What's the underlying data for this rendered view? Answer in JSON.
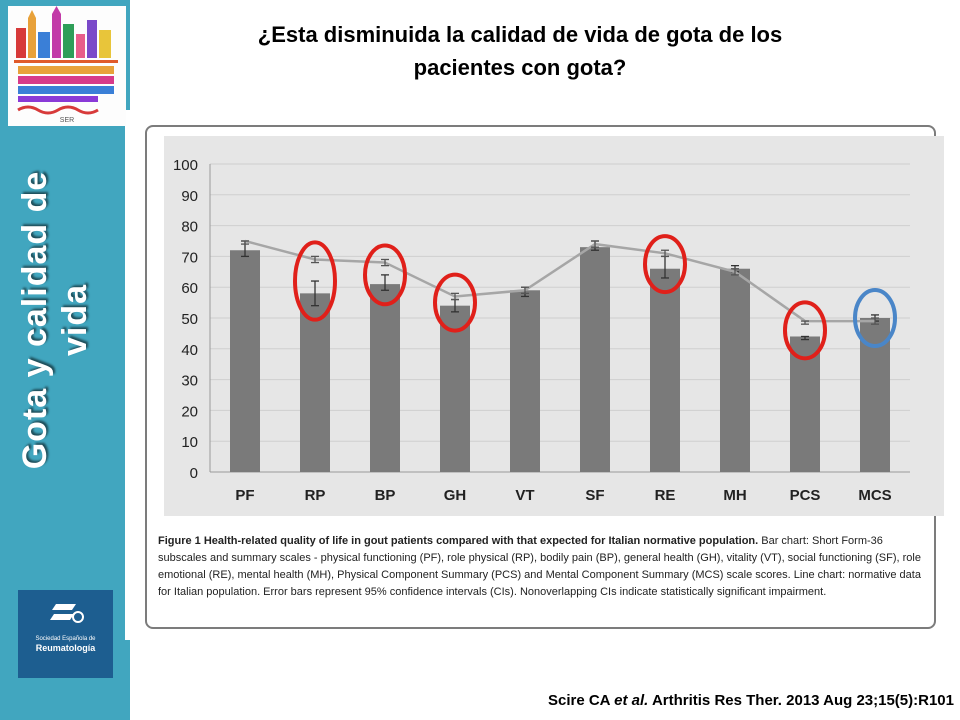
{
  "slide": {
    "title_line1": "¿Esta disminuida la calidad de vida de gota de los",
    "title_line2": "pacientes con gota?",
    "side_title_line1": "Gota  y calidad de",
    "side_title_line2": "vida",
    "logo_text": "SER",
    "ser_logo_small": "Sociedad Española de",
    "ser_logo_big": "Reumatología"
  },
  "colors": {
    "sidebar": "#41a6bf",
    "bar": "#7a7a7a",
    "line": "#a6a6a6",
    "plot_background": "#e6e6e6",
    "highlight_red": "#e0201a",
    "highlight_blue": "#4a86c8"
  },
  "chart_data": {
    "type": "bar",
    "categories": [
      "PF",
      "RP",
      "BP",
      "GH",
      "VT",
      "SF",
      "RE",
      "MH",
      "PCS",
      "MCS"
    ],
    "series": [
      {
        "kind": "bar",
        "values": [
          72,
          58,
          61,
          54,
          59,
          73,
          66,
          66,
          44,
          50
        ],
        "error_low": [
          70,
          54,
          59,
          52,
          57,
          72,
          63,
          65,
          43,
          49
        ],
        "error_high": [
          75,
          62,
          64,
          56,
          60,
          75,
          70,
          67,
          44,
          51
        ]
      },
      {
        "kind": "line",
        "values": [
          75,
          69,
          68,
          57,
          59,
          74,
          71,
          65,
          49,
          49
        ],
        "error_low": [
          74,
          68,
          67,
          56,
          58,
          73,
          70,
          64,
          48,
          48
        ],
        "error_high": [
          75,
          70,
          69,
          58,
          60,
          75,
          72,
          66,
          49,
          50
        ]
      }
    ],
    "yticks": [
      0,
      10,
      20,
      30,
      40,
      50,
      60,
      70,
      80,
      90,
      100
    ],
    "ylim": [
      0,
      100
    ],
    "grid": "horizontal",
    "highlighted_red": [
      "RP",
      "BP",
      "GH",
      "RE",
      "PCS"
    ],
    "highlighted_blue": [
      "MCS"
    ]
  },
  "caption": {
    "bold": "Figure 1 Health-related quality of life in gout patients compared with that expected for Italian normative population.",
    "text": " Bar chart: Short Form-36 subscales and summary scales - physical functioning (PF), role physical (RP), bodily pain (BP), general health (GH), vitality (VT), social functioning (SF), role emotional (RE), mental health (MH), Physical Component Summary (PCS) and Mental Component Summary (MCS) scale scores. Line chart: normative data for Italian population. Error bars represent 95% confidence intervals (CIs). Nonoverlapping CIs indicate statistically significant impairment."
  },
  "citation": {
    "authors": "Scire CA",
    "et_al": "et al.",
    "reference": "Arthritis Res Ther. 2013 Aug 23;15(5):R101"
  }
}
